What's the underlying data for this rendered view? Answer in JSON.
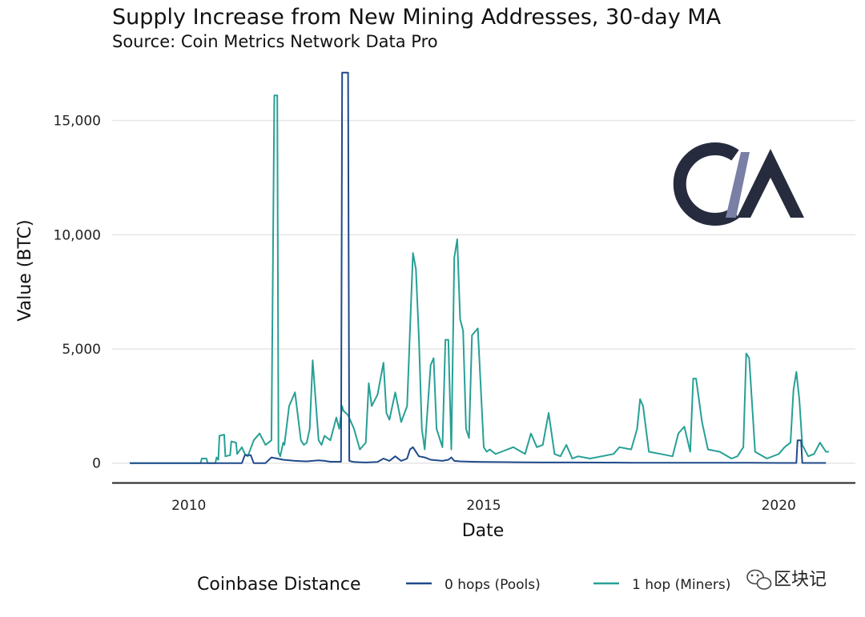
{
  "chart_data": {
    "type": "line",
    "title": "Supply Increase from New Mining Addresses, 30-day MA",
    "subtitle": "Source: Coin Metrics Network Data Pro",
    "xlabel": "Date",
    "ylabel": "Value (BTC)",
    "xlim": [
      2008.7,
      2021.3
    ],
    "ylim": [
      -850,
      17300
    ],
    "x_ticks": [
      2010,
      2015,
      2020
    ],
    "x_tick_labels": [
      "2010",
      "2015",
      "2020"
    ],
    "y_ticks": [
      0,
      5000,
      10000,
      15000
    ],
    "y_tick_labels": [
      "0",
      "5,000",
      "10,000",
      "15,000"
    ],
    "grid": "horizontal",
    "legend": {
      "title": "Coinbase Distance",
      "position": "bottom"
    },
    "series": [
      {
        "name": "0 hops (Pools)",
        "color": "#1f4a8a",
        "x": [
          2009.0,
          2010.9,
          2010.95,
          2011.05,
          2011.1,
          2011.3,
          2011.4,
          2011.5,
          2011.6,
          2011.8,
          2012.0,
          2012.2,
          2012.3,
          2012.4,
          2012.58,
          2012.6,
          2012.62,
          2012.7,
          2012.72,
          2012.75,
          2012.8,
          2012.9,
          2013.0,
          2013.2,
          2013.3,
          2013.4,
          2013.5,
          2013.6,
          2013.7,
          2013.75,
          2013.8,
          2013.9,
          2014.0,
          2014.1,
          2014.3,
          2014.4,
          2014.45,
          2014.5,
          2014.6,
          2014.8,
          2015.0,
          2015.5,
          2016.0,
          2016.5,
          2017.0,
          2017.5,
          2018.0,
          2018.5,
          2019.0,
          2019.5,
          2020.0,
          2020.3,
          2020.32,
          2020.38,
          2020.4,
          2020.5,
          2020.6,
          2020.8
        ],
        "values": [
          0,
          0,
          350,
          350,
          0,
          0,
          250,
          200,
          150,
          100,
          80,
          120,
          100,
          60,
          60,
          17100,
          17100,
          17100,
          100,
          80,
          50,
          40,
          30,
          50,
          200,
          100,
          300,
          100,
          200,
          600,
          700,
          300,
          250,
          150,
          100,
          150,
          250,
          100,
          80,
          60,
          50,
          40,
          30,
          30,
          25,
          20,
          20,
          20,
          15,
          15,
          10,
          10,
          1000,
          1000,
          10,
          10,
          10,
          10
        ]
      },
      {
        "name": "1 hop (Miners)",
        "color": "#27a095",
        "x": [
          2009.0,
          2010.2,
          2010.22,
          2010.3,
          2010.32,
          2010.45,
          2010.47,
          2010.5,
          2010.52,
          2010.6,
          2010.62,
          2010.7,
          2010.72,
          2010.8,
          2010.82,
          2010.9,
          2010.95,
          2011.0,
          2011.1,
          2011.2,
          2011.3,
          2011.4,
          2011.45,
          2011.5,
          2011.52,
          2011.55,
          2011.6,
          2011.62,
          2011.7,
          2011.8,
          2011.9,
          2011.95,
          2012.0,
          2012.05,
          2012.1,
          2012.2,
          2012.25,
          2012.3,
          2012.4,
          2012.5,
          2012.55,
          2012.6,
          2012.62,
          2012.7,
          2012.75,
          2012.8,
          2012.9,
          2013.0,
          2013.05,
          2013.1,
          2013.2,
          2013.3,
          2013.35,
          2013.4,
          2013.5,
          2013.6,
          2013.7,
          2013.8,
          2013.85,
          2013.9,
          2013.95,
          2014.0,
          2014.1,
          2014.15,
          2014.2,
          2014.3,
          2014.35,
          2014.4,
          2014.45,
          2014.5,
          2014.55,
          2014.6,
          2014.65,
          2014.7,
          2014.75,
          2014.8,
          2014.9,
          2015.0,
          2015.05,
          2015.1,
          2015.2,
          2015.3,
          2015.5,
          2015.7,
          2015.8,
          2015.9,
          2016.0,
          2016.1,
          2016.2,
          2016.3,
          2016.4,
          2016.45,
          2016.5,
          2016.6,
          2016.8,
          2017.0,
          2017.2,
          2017.3,
          2017.5,
          2017.6,
          2017.65,
          2017.7,
          2017.8,
          2018.0,
          2018.2,
          2018.3,
          2018.4,
          2018.5,
          2018.55,
          2018.6,
          2018.7,
          2018.8,
          2019.0,
          2019.2,
          2019.3,
          2019.4,
          2019.45,
          2019.5,
          2019.6,
          2019.8,
          2020.0,
          2020.1,
          2020.2,
          2020.25,
          2020.3,
          2020.35,
          2020.4,
          2020.5,
          2020.6,
          2020.7,
          2020.75,
          2020.8,
          2020.85
        ],
        "values": [
          0,
          0,
          200,
          200,
          0,
          0,
          250,
          150,
          1200,
          1250,
          300,
          350,
          950,
          900,
          400,
          700,
          400,
          300,
          1000,
          1300,
          800,
          1000,
          16100,
          16100,
          500,
          300,
          900,
          800,
          2500,
          3100,
          1000,
          800,
          900,
          1500,
          4500,
          1000,
          800,
          1200,
          1000,
          2000,
          1500,
          2500,
          2300,
          2100,
          1800,
          1500,
          600,
          900,
          3500,
          2500,
          3000,
          4400,
          2200,
          1900,
          3100,
          1800,
          2500,
          9200,
          8500,
          5500,
          1500,
          600,
          4300,
          4600,
          1500,
          700,
          5400,
          5400,
          600,
          9000,
          9800,
          6300,
          5800,
          1500,
          1100,
          5600,
          5900,
          700,
          500,
          600,
          400,
          500,
          700,
          400,
          1300,
          700,
          800,
          2200,
          400,
          300,
          800,
          500,
          200,
          300,
          200,
          300,
          400,
          700,
          600,
          1500,
          2800,
          2500,
          500,
          400,
          300,
          1300,
          1600,
          500,
          3700,
          3700,
          1800,
          600,
          500,
          200,
          300,
          700,
          4800,
          4600,
          500,
          200,
          400,
          700,
          900,
          3200,
          4000,
          2800,
          800,
          300,
          400,
          900,
          700,
          500,
          500
        ]
      }
    ]
  },
  "logo_text": "CM",
  "watermark": {
    "text": "区块记",
    "icon": "wechat-icon"
  }
}
